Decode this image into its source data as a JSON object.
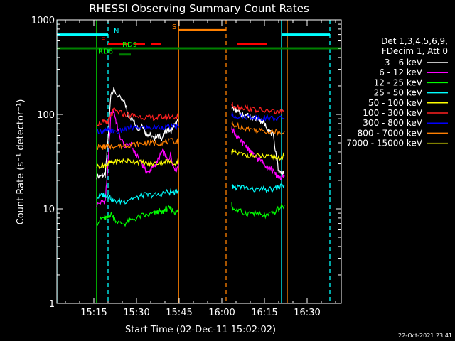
{
  "chart_data": {
    "type": "line",
    "title": "RHESSI Observing Summary Count Rates",
    "xlabel": "Start Time (02-Dec-11 15:02:02)",
    "ylabel": "Count Rate (s⁻¹ detector⁻¹)",
    "yscale": "log",
    "ylim": [
      1,
      1000
    ],
    "xlim_min": [
      0,
      100
    ],
    "xticks": [
      {
        "min": 13,
        "label": "15:15"
      },
      {
        "min": 28,
        "label": "15:30"
      },
      {
        "min": 43,
        "label": "15:45"
      },
      {
        "min": 58,
        "label": "16:00"
      },
      {
        "min": 73,
        "label": "16:15"
      },
      {
        "min": 88,
        "label": "16:30"
      }
    ],
    "yticks": [
      {
        "value": 1,
        "label": "1"
      },
      {
        "value": 10,
        "label": "10"
      },
      {
        "value": 100,
        "label": "100"
      },
      {
        "value": 1000,
        "label": "1000"
      }
    ],
    "legend_header": [
      "Det 1,3,4,5,6,9,",
      "FDecim 1, Att 0"
    ],
    "legend_placement": "right",
    "series": [
      {
        "name": "3 - 6 keV",
        "color": "#ffffff",
        "segments": [
          {
            "x": [
              14,
              16,
              17,
              18,
              19,
              20,
              22,
              24,
              25,
              27,
              28,
              29,
              30,
              31,
              32,
              33,
              34,
              35,
              36,
              37,
              38,
              39,
              40,
              41,
              42,
              42.8
            ],
            "y": [
              22,
              23,
              22,
              55,
              170,
              180,
              150,
              130,
              100,
              85,
              75,
              70,
              80,
              65,
              62,
              60,
              55,
              60,
              58,
              56,
              65,
              70,
              65,
              75,
              80,
              85
            ]
          },
          {
            "x": [
              61.5,
              62,
              63,
              64,
              65,
              66,
              67,
              68,
              69,
              70,
              71,
              72,
              73,
              74,
              75,
              76,
              77,
              78,
              79,
              80
            ],
            "y": [
              120,
              118,
              110,
              105,
              100,
              100,
              98,
              95,
              93,
              90,
              88,
              85,
              80,
              72,
              65,
              60,
              40,
              25,
              24,
              25
            ]
          }
        ]
      },
      {
        "name": "6 - 12 keV",
        "color": "#ff00ff",
        "segments": [
          {
            "x": [
              14,
              16,
              17,
              18,
              19,
              20,
              21,
              22,
              24,
              26,
              27,
              28,
              30,
              31,
              32,
              33,
              34,
              35,
              36,
              37,
              38,
              39,
              40,
              41,
              42,
              42.8
            ],
            "y": [
              11,
              12,
              12,
              30,
              100,
              110,
              80,
              60,
              45,
              50,
              40,
              37,
              30,
              26,
              24,
              26,
              28,
              30,
              35,
              40,
              38,
              32,
              38,
              28,
              26,
              30
            ]
          },
          {
            "x": [
              61.5,
              62,
              63,
              64,
              65,
              66,
              67,
              68,
              69,
              70,
              71,
              72,
              73,
              74,
              75,
              76,
              77,
              78,
              79,
              80
            ],
            "y": [
              70,
              68,
              60,
              55,
              50,
              48,
              45,
              40,
              38,
              35,
              33,
              32,
              30,
              28,
              27,
              25,
              23,
              22,
              21,
              22
            ]
          }
        ]
      },
      {
        "name": "12 - 25 keV",
        "color": "#00ff00",
        "segments": [
          {
            "x": [
              14,
              16,
              17,
              18,
              19,
              20,
              22,
              24,
              26,
              28,
              30,
              32,
              34,
              35,
              36,
              37,
              38,
              39,
              40,
              41,
              42,
              42.8
            ],
            "y": [
              7,
              8,
              8,
              8,
              9,
              8,
              7,
              7,
              7.5,
              8,
              8.5,
              8.5,
              9,
              9,
              9.5,
              9,
              10,
              10,
              10,
              9.5,
              9,
              10
            ]
          },
          {
            "x": [
              61.5,
              62,
              64,
              66,
              68,
              70,
              72,
              74,
              76,
              78,
              80
            ],
            "y": [
              11,
              10,
              9.5,
              9,
              9,
              9,
              8.5,
              8.5,
              9,
              10,
              11
            ]
          }
        ]
      },
      {
        "name": "25 - 50 keV",
        "color": "#00ffff",
        "segments": [
          {
            "x": [
              14,
              16,
              17,
              18,
              19,
              20,
              22,
              24,
              26,
              28,
              30,
              32,
              34,
              36,
              38,
              40,
              42,
              42.8
            ],
            "y": [
              13,
              14,
              14,
              14,
              13,
              12,
              12,
              12,
              13,
              13,
              14,
              14,
              14,
              14,
              15,
              15,
              15,
              16
            ]
          },
          {
            "x": [
              61.5,
              62,
              64,
              66,
              68,
              70,
              72,
              74,
              76,
              78,
              80
            ],
            "y": [
              17,
              17,
              17,
              17,
              16,
              16,
              16,
              16,
              16,
              17,
              18
            ]
          }
        ]
      },
      {
        "name": "50 - 100 keV",
        "color": "#ffff00",
        "segments": [
          {
            "x": [
              14,
              16,
              17,
              18,
              19,
              20,
              22,
              24,
              26,
              28,
              30,
              32,
              34,
              36,
              38,
              40,
              42,
              42.8
            ],
            "y": [
              28,
              29,
              29,
              30,
              31,
              31,
              32,
              32,
              32,
              32,
              31,
              30,
              30,
              31,
              32,
              31,
              31,
              32
            ]
          },
          {
            "x": [
              61.5,
              62,
              64,
              66,
              68,
              70,
              72,
              74,
              76,
              78,
              80
            ],
            "y": [
              40,
              40,
              38,
              37,
              37,
              36,
              36,
              35,
              35,
              35,
              36
            ]
          }
        ]
      },
      {
        "name": "100 - 300 keV",
        "color": "#ff2020",
        "segments": [
          {
            "x": [
              14,
              16,
              17,
              18,
              19,
              20,
              22,
              24,
              26,
              28,
              30,
              32,
              34,
              36,
              38,
              40,
              42,
              42.8
            ],
            "y": [
              80,
              82,
              82,
              84,
              95,
              110,
              105,
              100,
              98,
              96,
              94,
              92,
              92,
              93,
              95,
              95,
              94,
              95
            ]
          },
          {
            "x": [
              61.5,
              62,
              64,
              66,
              68,
              70,
              72,
              74,
              76,
              78,
              80
            ],
            "y": [
              128,
              125,
              120,
              118,
              115,
              112,
              110,
              108,
              108,
              106,
              108
            ]
          }
        ]
      },
      {
        "name": "300 - 800 keV",
        "color": "#0000ff",
        "segments": [
          {
            "x": [
              14,
              16,
              17,
              18,
              19,
              20,
              22,
              24,
              26,
              28,
              30,
              32,
              34,
              36,
              38,
              40,
              42,
              42.8
            ],
            "y": [
              66,
              67,
              67,
              67,
              68,
              66,
              66,
              70,
              72,
              72,
              73,
              72,
              72,
              73,
              74,
              73,
              74,
              75
            ]
          },
          {
            "x": [
              61.5,
              62,
              64,
              66,
              68,
              70,
              72,
              74,
              76,
              78,
              80
            ],
            "y": [
              100,
              98,
              96,
              95,
              94,
              93,
              92,
              92,
              91,
              90,
              92
            ]
          }
        ]
      },
      {
        "name": "800 - 7000 keV",
        "color": "#ff8000",
        "segments": [
          {
            "x": [
              14,
              16,
              17,
              18,
              19,
              20,
              22,
              24,
              26,
              28,
              30,
              32,
              34,
              36,
              38,
              40,
              42,
              42.8
            ],
            "y": [
              45,
              45,
              45,
              46,
              46,
              46,
              46,
              47,
              48,
              48,
              49,
              50,
              50,
              50,
              51,
              52,
              52,
              53
            ]
          },
          {
            "x": [
              61.5,
              62,
              64,
              66,
              68,
              70,
              72,
              74,
              76,
              78,
              80
            ],
            "y": [
              80,
              78,
              75,
              72,
              70,
              68,
              67,
              66,
              66,
              65,
              66
            ]
          }
        ]
      },
      {
        "name": "7000 - 15000 keV",
        "color": "#808000",
        "segments": []
      }
    ],
    "vlines": [
      {
        "min": 0,
        "color": "#00ffff",
        "style": "solid"
      },
      {
        "min": 18,
        "color": "#00ffff",
        "style": "dashed"
      },
      {
        "min": 79,
        "color": "#00ffff",
        "style": "solid"
      },
      {
        "min": 96,
        "color": "#00ffff",
        "style": "dashed"
      },
      {
        "min": 14,
        "color": "#00ff00",
        "style": "solid"
      },
      {
        "min": 42.8,
        "color": "#ff8000",
        "style": "solid"
      },
      {
        "min": 59.5,
        "color": "#ff8000",
        "style": "dashed"
      },
      {
        "min": 81,
        "color": "#ff8000",
        "style": "solid"
      }
    ],
    "flag_bars": [
      {
        "color": "#00ffff",
        "y": 700,
        "x": [
          [
            0,
            18
          ],
          [
            79,
            96
          ]
        ]
      },
      {
        "color": "#ff8000",
        "y": 780,
        "x": [
          [
            42.8,
            59.5
          ]
        ]
      },
      {
        "color": "#ff0000",
        "y": 560,
        "x": [
          [
            18,
            25.5
          ],
          [
            27,
            31
          ],
          [
            33,
            36.5
          ],
          [
            63.5,
            74
          ]
        ]
      },
      {
        "color": "#008000",
        "y": 500,
        "x": [
          [
            0,
            100
          ]
        ]
      },
      {
        "color": "#008000",
        "y": 430,
        "x": [
          [
            22,
            26
          ]
        ]
      }
    ],
    "flag_labels": [
      {
        "text": "N",
        "color": "#00ffff",
        "x": 20,
        "y": 720
      },
      {
        "text": "S",
        "color": "#ff8000",
        "x": 40.5,
        "y": 800
      },
      {
        "text": "F",
        "color": "#ff0000",
        "x": 15.5,
        "y": 580
      },
      {
        "text": "RD9",
        "color": "#00ff00",
        "x": 23,
        "y": 520
      },
      {
        "text": "RD6",
        "color": "#00ff00",
        "x": 14.5,
        "y": 440
      }
    ],
    "timestamp": "22-Oct-2021 23:41"
  }
}
